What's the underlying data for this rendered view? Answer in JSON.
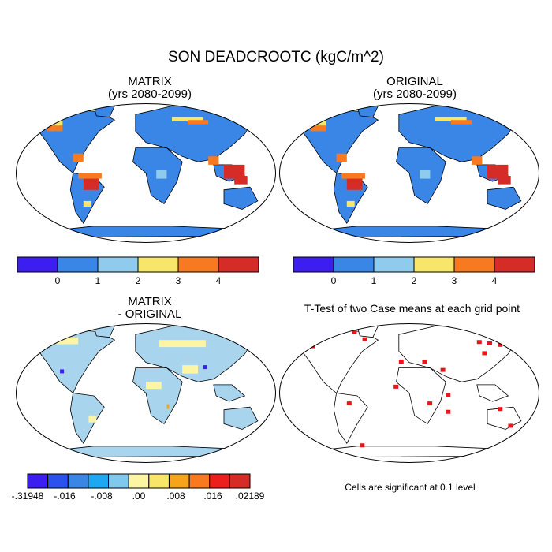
{
  "title": "SON DEADCROOTC (kgC/m^2)",
  "panels": [
    {
      "id": "matrix",
      "title_line1": "MATRIX",
      "title_line2": "(yrs 2080-2099)"
    },
    {
      "id": "original",
      "title_line1": "ORIGINAL",
      "title_line2": "(yrs 2080-2099)"
    },
    {
      "id": "difference",
      "title_line1": "MATRIX",
      "title_line2": "- ORIGINAL"
    },
    {
      "id": "ttest",
      "title_line1": "T-Test of two Case means at each grid point",
      "title_line2": ""
    }
  ],
  "colorbar_top": {
    "colors": [
      "#3d1ef0",
      "#3a86e6",
      "#8ecbec",
      "#f8e66a",
      "#f77a21",
      "#d62c27"
    ],
    "labels": [
      "0",
      "1",
      "2",
      "3",
      "4"
    ]
  },
  "colorbar_diff": {
    "colors": [
      "#3d1ef0",
      "#2c52ee",
      "#3a86e6",
      "#1fa7f2",
      "#7fc8ee",
      "#fbf5a4",
      "#f8e66a",
      "#f5a51c",
      "#f77a21",
      "#ec1e1e",
      "#d62c27"
    ],
    "labels": [
      ".31948",
      "-.016",
      "-.008",
      ".00",
      ".008",
      ".016",
      ".02189"
    ],
    "label_prefix_first": "-"
  },
  "ttest_note": "Cells are significant at 0.1 level",
  "colors": {
    "ocean": "#ffffff",
    "land_base_top": "#3a86e6",
    "land_base_diff": "#a8d4ee",
    "coast": "#000000",
    "signif": "#e8161b"
  }
}
